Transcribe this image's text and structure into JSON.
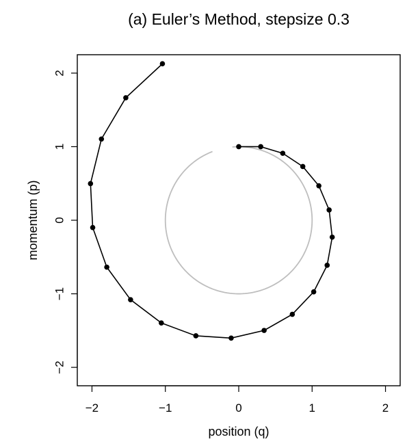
{
  "chart_data": {
    "type": "line",
    "title": "(a) Euler’s Method, stepsize 0.3",
    "xlabel": "position (q)",
    "ylabel": "momentum (p)",
    "xlim": [
      -2.2,
      2.2
    ],
    "ylim": [
      -2.25,
      2.25
    ],
    "x_ticks": [
      -2,
      -1,
      0,
      1,
      2
    ],
    "y_ticks": [
      -2,
      -1,
      0,
      1,
      2
    ],
    "x_tick_labels": [
      "−2",
      "−1",
      "0",
      "1",
      "2"
    ],
    "y_tick_labels": [
      "−2",
      "−1",
      "0",
      "1",
      "2"
    ],
    "grid": false,
    "colors": {
      "trajectory": "#000000",
      "reference_circle": "#bebebe"
    },
    "reference_circle": {
      "center": [
        0,
        0
      ],
      "radius": 1,
      "gap_start_deg": 95,
      "gap_end_deg": 111
    },
    "series": [
      {
        "points": [
          [
            0.0,
            1.0
          ],
          [
            0.3,
            1.0
          ],
          [
            0.6,
            0.91
          ],
          [
            0.873,
            0.73
          ],
          [
            1.092,
            0.468
          ],
          [
            1.232,
            0.14
          ],
          [
            1.274,
            -0.23
          ],
          [
            1.205,
            -0.612
          ],
          [
            1.022,
            -0.973
          ],
          [
            0.73,
            -1.279
          ],
          [
            0.346,
            -1.498
          ],
          [
            -0.103,
            -1.602
          ],
          [
            -0.584,
            -1.571
          ],
          [
            -1.055,
            -1.396
          ],
          [
            -1.474,
            -1.08
          ],
          [
            -1.798,
            -0.638
          ],
          [
            -1.99,
            -0.099
          ],
          [
            -2.02,
            0.498
          ],
          [
            -1.871,
            1.104
          ],
          [
            -1.539,
            1.665
          ],
          [
            -1.04,
            2.127
          ]
        ]
      }
    ]
  }
}
